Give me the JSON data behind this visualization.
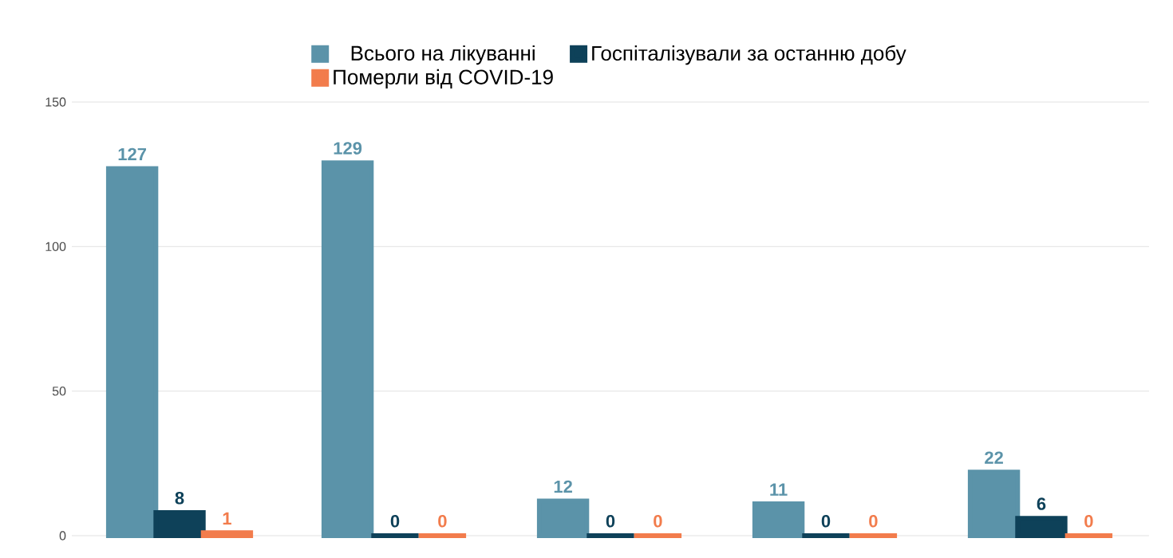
{
  "chart_data": {
    "type": "bar",
    "categories": [
      null,
      null,
      null,
      null,
      null
    ],
    "series": [
      {
        "name": "Всього на лікуванні",
        "color": "#5b93a9",
        "values": [
          127,
          129,
          12,
          11,
          22
        ]
      },
      {
        "name": "Госпіталізували за останню добу",
        "color": "#0e4159",
        "values": [
          8,
          0,
          0,
          0,
          6
        ]
      },
      {
        "name": "Померли від COVID-19",
        "color": "#f27c4c",
        "values": [
          1,
          0,
          0,
          0,
          0
        ]
      }
    ],
    "ylim": [
      0,
      150
    ],
    "yticks": [
      0,
      50,
      100,
      150
    ],
    "grid": "y",
    "legend": "top",
    "data_labels": true
  }
}
